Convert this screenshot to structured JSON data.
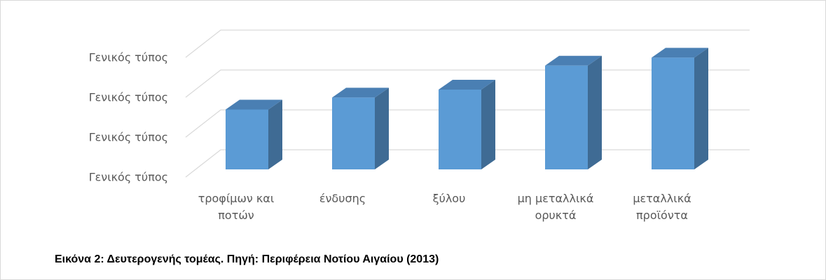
{
  "chart_data": {
    "type": "bar3d",
    "categories": [
      "τροφίμων και ποτών",
      "ένδυσης",
      "ξύλου",
      "μη μεταλλικά ορυκτά",
      "μεταλλικά προϊόντα"
    ],
    "values": [
      1.5,
      1.8,
      2.0,
      2.6,
      2.8
    ],
    "color": "#5b9bd5",
    "ylim": [
      0,
      3
    ],
    "yticks": [
      {
        "value": 0,
        "label": "Γενικός τύπος"
      },
      {
        "value": 1,
        "label": "Γενικός τύπος"
      },
      {
        "value": 2,
        "label": "Γενικός τύπος"
      },
      {
        "value": 3,
        "label": "Γενικός τύπος"
      }
    ],
    "grid": true,
    "caption": "Εικόνα 2: Δευτερογενής τομέας. Πηγή: Περιφέρεια Νοτίου Αιγαίου (2013)"
  }
}
